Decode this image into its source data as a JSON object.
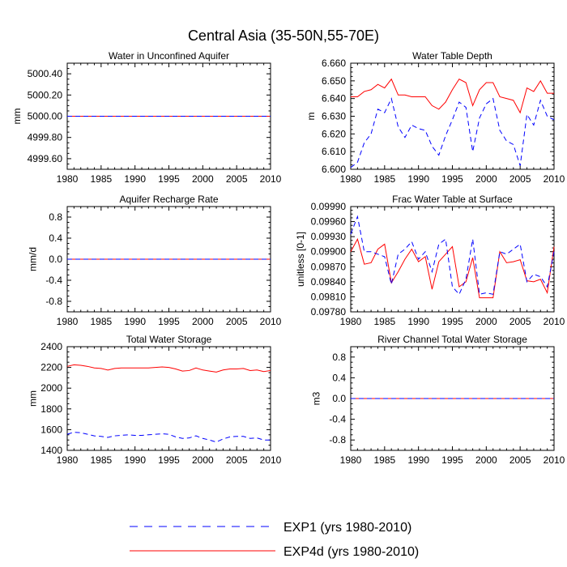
{
  "figure_title": "Central Asia (35-50N,55-70E)",
  "colors": {
    "exp1": "#0000ff",
    "exp4d": "#ff0000",
    "axis": "#000000"
  },
  "legend": {
    "entries": [
      {
        "label": "EXP1 (yrs 1980-2010)",
        "style": "dashed",
        "color": "#0000ff"
      },
      {
        "label": "EXP4d (yrs 1980-2010)",
        "style": "solid",
        "color": "#ff0000"
      }
    ]
  },
  "chart_data": [
    {
      "type": "line",
      "title": "Water in Unconfined Aquifer",
      "ylabel": "mm",
      "xlim": [
        1980,
        2010
      ],
      "ylim": [
        4999.5,
        5000.5
      ],
      "xticks": [
        1980,
        1985,
        1990,
        1995,
        2000,
        2005,
        2010
      ],
      "yticks": [
        4999.6,
        4999.8,
        5000.0,
        5000.2,
        5000.4
      ],
      "ytick_labels": [
        "4999.60",
        "4999.80",
        "5000.00",
        "5000.20",
        "5000.40"
      ],
      "x": [
        1980,
        2010
      ],
      "series": [
        {
          "name": "EXP1",
          "values": [
            5000.0,
            5000.0
          ]
        },
        {
          "name": "EXP4d",
          "values": [
            5000.0,
            5000.0
          ]
        }
      ]
    },
    {
      "type": "line",
      "title": "Water Table Depth",
      "ylabel": "m",
      "xlim": [
        1980,
        2010
      ],
      "ylim": [
        6.6,
        6.66
      ],
      "xticks": [
        1980,
        1985,
        1990,
        1995,
        2000,
        2005,
        2010
      ],
      "yticks": [
        6.6,
        6.61,
        6.62,
        6.63,
        6.64,
        6.65,
        6.66
      ],
      "ytick_labels": [
        "6.600",
        "6.610",
        "6.620",
        "6.630",
        "6.640",
        "6.650",
        "6.660"
      ],
      "x": [
        1980,
        1981,
        1982,
        1983,
        1984,
        1985,
        1986,
        1987,
        1988,
        1989,
        1990,
        1991,
        1992,
        1993,
        1994,
        1995,
        1996,
        1997,
        1998,
        1999,
        2000,
        2001,
        2002,
        2003,
        2004,
        2005,
        2006,
        2007,
        2008,
        2009,
        2010
      ],
      "series": [
        {
          "name": "EXP1",
          "values": [
            6.601,
            6.604,
            6.615,
            6.62,
            6.634,
            6.632,
            6.64,
            6.624,
            6.618,
            6.625,
            6.623,
            6.622,
            6.613,
            6.608,
            6.619,
            6.628,
            6.638,
            6.635,
            6.61,
            6.629,
            6.637,
            6.64,
            6.622,
            6.616,
            6.614,
            6.602,
            6.631,
            6.625,
            6.639,
            6.63,
            6.628
          ]
        },
        {
          "name": "EXP4d",
          "values": [
            6.641,
            6.641,
            6.644,
            6.645,
            6.648,
            6.646,
            6.651,
            6.642,
            6.642,
            6.641,
            6.641,
            6.641,
            6.636,
            6.634,
            6.638,
            6.645,
            6.651,
            6.649,
            6.636,
            6.645,
            6.649,
            6.649,
            6.641,
            6.64,
            6.639,
            6.632,
            6.646,
            6.644,
            6.65,
            6.643,
            6.643
          ]
        }
      ]
    },
    {
      "type": "line",
      "title": "Aquifer Recharge Rate",
      "ylabel": "mm/d",
      "xlim": [
        1980,
        2010
      ],
      "ylim": [
        -1.0,
        1.0
      ],
      "xticks": [
        1980,
        1985,
        1990,
        1995,
        2000,
        2005,
        2010
      ],
      "yticks": [
        -0.8,
        -0.4,
        0.0,
        0.4,
        0.8
      ],
      "ytick_labels": [
        "-0.8",
        "-0.4",
        "0.0",
        "0.4",
        "0.8"
      ],
      "x": [
        1980,
        2010
      ],
      "series": [
        {
          "name": "EXP1",
          "values": [
            0.0,
            0.0
          ]
        },
        {
          "name": "EXP4d",
          "values": [
            0.0,
            0.0
          ]
        }
      ]
    },
    {
      "type": "line",
      "title": "Frac Water Table at Surface",
      "ylabel": "unitless [0-1]",
      "xlim": [
        1980,
        2010
      ],
      "ylim": [
        0.0978,
        0.0999
      ],
      "xticks": [
        1980,
        1985,
        1990,
        1995,
        2000,
        2005,
        2010
      ],
      "yticks": [
        0.0978,
        0.0981,
        0.0984,
        0.0987,
        0.099,
        0.0993,
        0.0996,
        0.0999
      ],
      "ytick_labels": [
        "0.09780",
        "0.09810",
        "0.09840",
        "0.09870",
        "0.09900",
        "0.09930",
        "0.09960",
        "0.09990"
      ],
      "x": [
        1980,
        1981,
        1982,
        1983,
        1984,
        1985,
        1986,
        1987,
        1988,
        1989,
        1990,
        1991,
        1992,
        1993,
        1994,
        1995,
        1996,
        1997,
        1998,
        1999,
        2000,
        2001,
        2002,
        2003,
        2004,
        2005,
        2006,
        2007,
        2008,
        2009,
        2010
      ],
      "series": [
        {
          "name": "EXP1",
          "values": [
            0.09935,
            0.0997,
            0.099,
            0.099,
            0.09895,
            0.0989,
            0.09835,
            0.09895,
            0.09905,
            0.0992,
            0.09885,
            0.099,
            0.0986,
            0.09915,
            0.09925,
            0.0983,
            0.09815,
            0.09845,
            0.09925,
            0.09815,
            0.09818,
            0.09815,
            0.099,
            0.09895,
            0.09905,
            0.09915,
            0.0984,
            0.09855,
            0.0985,
            0.0983,
            0.099
          ]
        },
        {
          "name": "EXP4d",
          "values": [
            0.099,
            0.09925,
            0.09875,
            0.09878,
            0.09905,
            0.09915,
            0.09838,
            0.0986,
            0.09885,
            0.09905,
            0.0988,
            0.0989,
            0.09825,
            0.0988,
            0.09895,
            0.0991,
            0.0983,
            0.0984,
            0.09888,
            0.09808,
            0.09808,
            0.09808,
            0.099,
            0.09878,
            0.0988,
            0.09884,
            0.09842,
            0.0984,
            0.09845,
            0.09818,
            0.0991
          ]
        }
      ]
    },
    {
      "type": "line",
      "title": "Total Water Storage",
      "ylabel": "mm",
      "xlim": [
        1980,
        2010
      ],
      "ylim": [
        1400,
        2400
      ],
      "xticks": [
        1980,
        1985,
        1990,
        1995,
        2000,
        2005,
        2010
      ],
      "yticks": [
        1400,
        1600,
        1800,
        2000,
        2200,
        2400
      ],
      "ytick_labels": [
        "1400",
        "1600",
        "1800",
        "2000",
        "2200",
        "2400"
      ],
      "x": [
        1980,
        1981,
        1982,
        1983,
        1984,
        1985,
        1986,
        1987,
        1988,
        1989,
        1990,
        1991,
        1992,
        1993,
        1994,
        1995,
        1996,
        1997,
        1998,
        1999,
        2000,
        2001,
        2002,
        2003,
        2004,
        2005,
        2006,
        2007,
        2008,
        2009,
        2010
      ],
      "series": [
        {
          "name": "EXP1",
          "values": [
            1555,
            1575,
            1570,
            1555,
            1540,
            1535,
            1525,
            1540,
            1545,
            1550,
            1545,
            1545,
            1550,
            1555,
            1560,
            1555,
            1530,
            1515,
            1520,
            1540,
            1515,
            1500,
            1480,
            1510,
            1530,
            1535,
            1535,
            1515,
            1520,
            1500,
            1500
          ]
        },
        {
          "name": "EXP4d",
          "values": [
            2210,
            2225,
            2220,
            2210,
            2195,
            2190,
            2175,
            2190,
            2195,
            2195,
            2195,
            2195,
            2195,
            2200,
            2205,
            2200,
            2185,
            2165,
            2170,
            2195,
            2175,
            2165,
            2155,
            2175,
            2185,
            2185,
            2190,
            2170,
            2175,
            2160,
            2170
          ]
        }
      ]
    },
    {
      "type": "line",
      "title": "River Channel Total Water Storage",
      "ylabel": "m3",
      "xlim": [
        1980,
        2010
      ],
      "ylim": [
        -1.0,
        1.0
      ],
      "xticks": [
        1980,
        1985,
        1990,
        1995,
        2000,
        2005,
        2010
      ],
      "yticks": [
        -0.8,
        -0.4,
        0.0,
        0.4,
        0.8
      ],
      "ytick_labels": [
        "-0.8",
        "-0.4",
        "0.0",
        "0.4",
        "0.8"
      ],
      "x": [
        1980,
        2010
      ],
      "series": [
        {
          "name": "EXP1",
          "values": [
            0.0,
            0.0
          ]
        },
        {
          "name": "EXP4d",
          "values": [
            0.0,
            0.0
          ]
        }
      ]
    }
  ]
}
